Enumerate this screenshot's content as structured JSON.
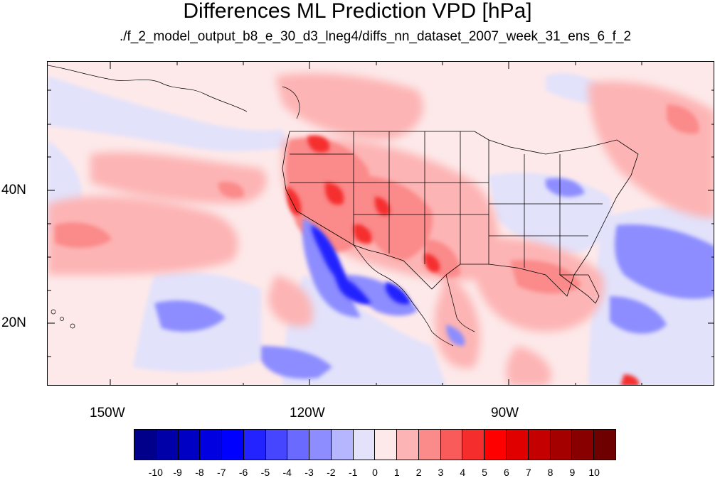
{
  "title": "Differences ML Prediction VPD [hPa]",
  "subtitle": "./f_2_model_output_b8_e_30_d3_lneg4/diffs_nn_dataset_2007_week_31_ens_6_f_2",
  "axes": {
    "lat_labels": [
      "40N",
      "20N"
    ],
    "lon_labels": [
      "150W",
      "120W",
      "90W"
    ]
  },
  "colorbar": {
    "labels": [
      "-10",
      "-9",
      "-8",
      "-7",
      "-6",
      "-5",
      "-4",
      "-3",
      "-2",
      "-1",
      "0",
      "1",
      "2",
      "3",
      "4",
      "5",
      "6",
      "7",
      "8",
      "9",
      "10"
    ],
    "colors": [
      "#00008a",
      "#0000a8",
      "#0000c4",
      "#0000e0",
      "#0000ff",
      "#2323ff",
      "#4646ff",
      "#6a6aff",
      "#8d8dff",
      "#b6b6ff",
      "#e2e2fb",
      "#fde9ea",
      "#fdb4b4",
      "#fb8a8a",
      "#f95a5a",
      "#f52d2d",
      "#ff0000",
      "#e00000",
      "#c40000",
      "#a50000",
      "#880000",
      "#6e0000"
    ]
  }
}
